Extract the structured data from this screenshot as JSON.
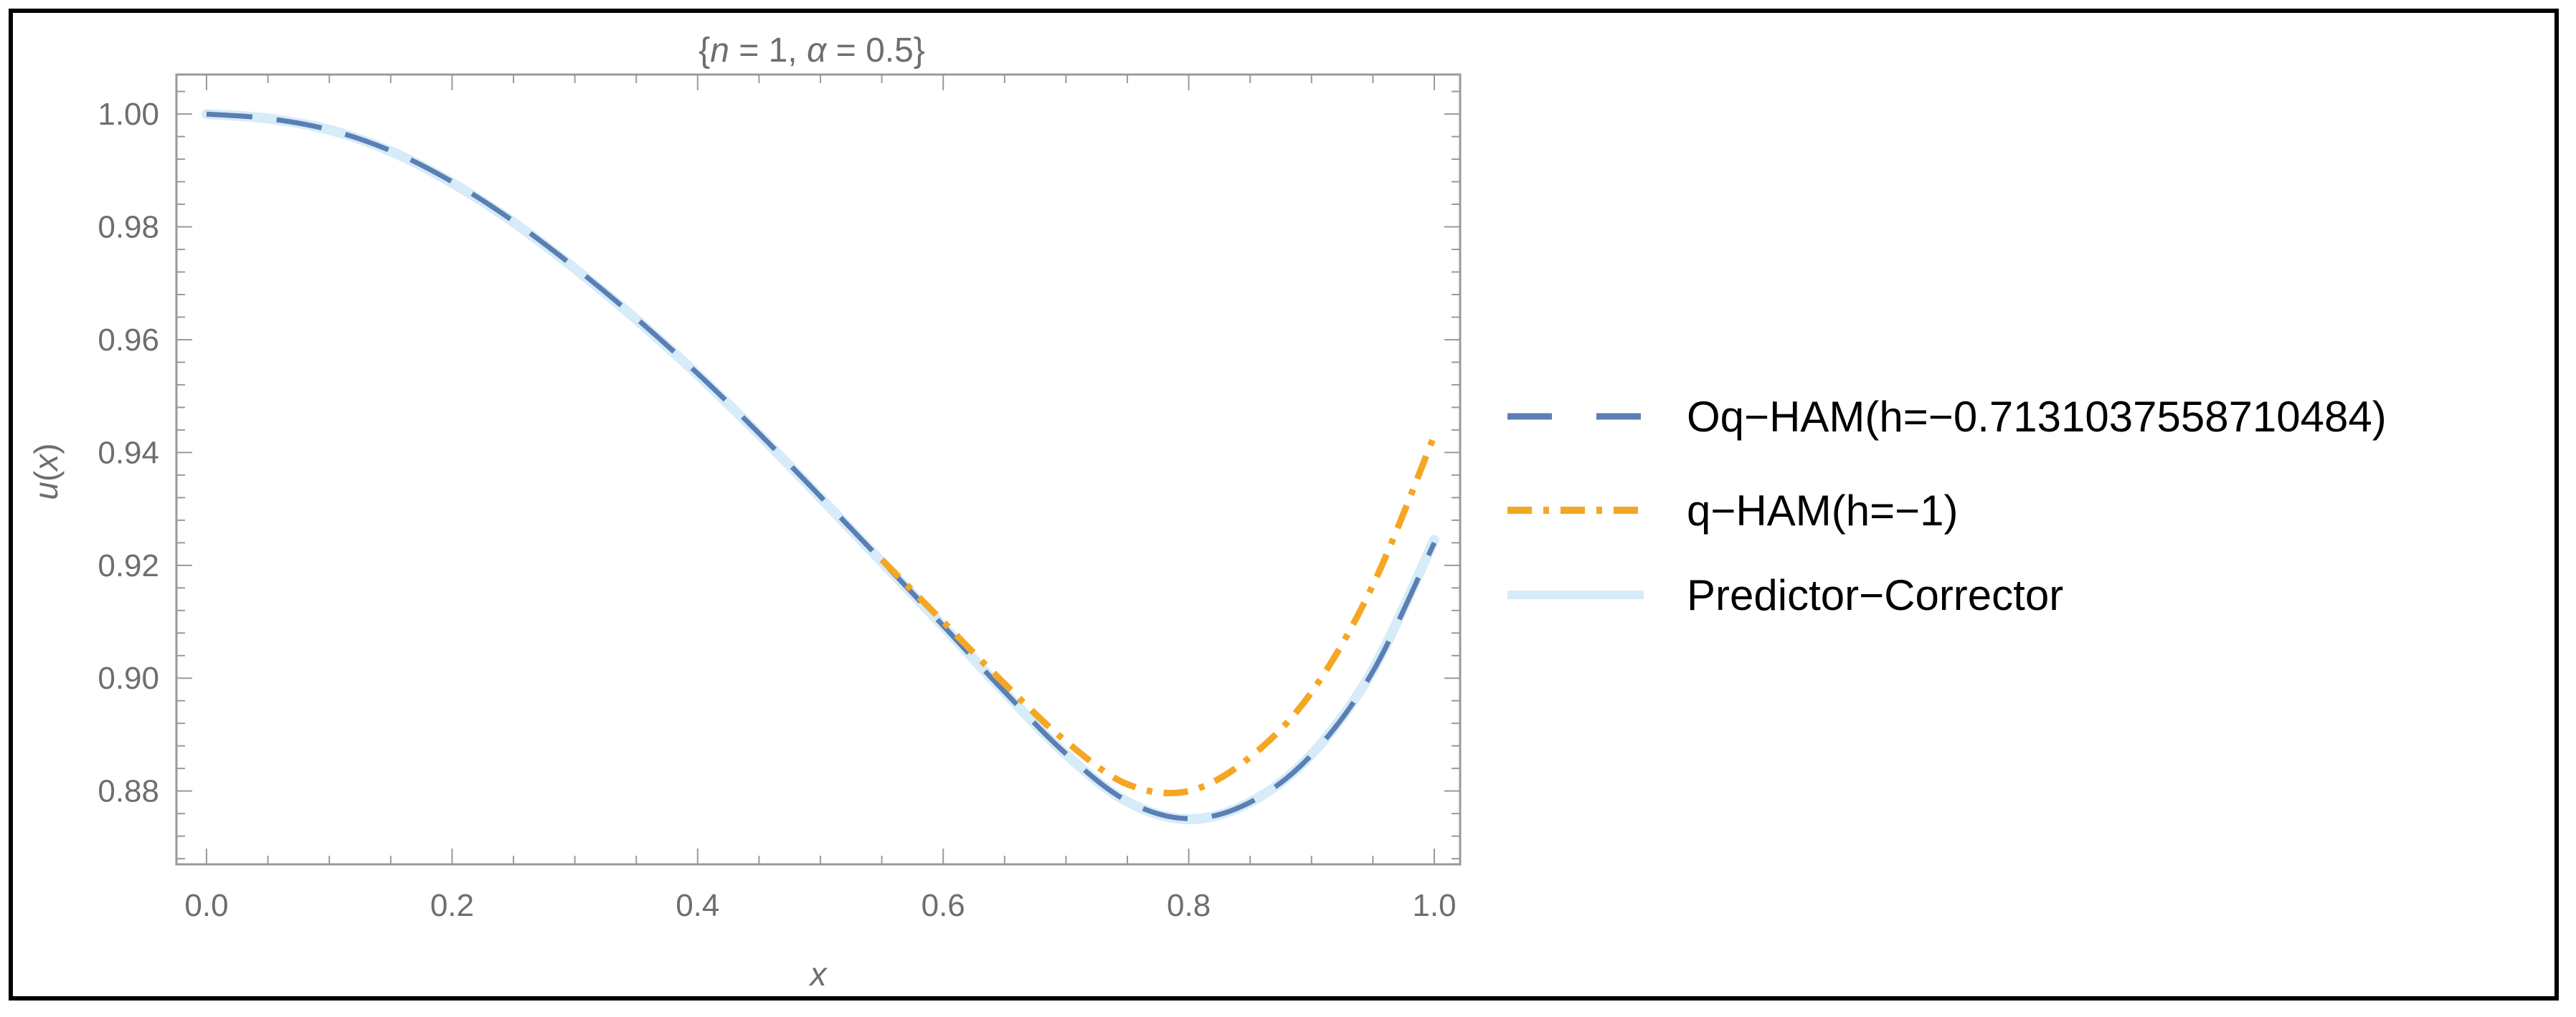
{
  "chart_data": {
    "type": "line",
    "title": "{n = 1, α = 0.5}",
    "title_parts": {
      "open": "{",
      "n": "n",
      "n_eq": " = 1, ",
      "alpha": "α",
      "alpha_eq": " = 0.5",
      "close": "}"
    },
    "xlabel": "x",
    "ylabel": "u(x)",
    "ylabel_parts": {
      "u": "u",
      "open": "(",
      "x": "x",
      "close": ")"
    },
    "xlim": [
      0.0,
      1.0
    ],
    "ylim": [
      0.867,
      1.007
    ],
    "x_ticks": [
      0.0,
      0.2,
      0.4,
      0.6,
      0.8,
      1.0
    ],
    "x_tick_labels": [
      "0.0",
      "0.2",
      "0.4",
      "0.6",
      "0.8",
      "1.0"
    ],
    "y_ticks": [
      0.88,
      0.9,
      0.92,
      0.94,
      0.96,
      0.98,
      1.0
    ],
    "y_tick_labels": [
      "0.88",
      "0.90",
      "0.92",
      "0.94",
      "0.96",
      "0.98",
      "1.00"
    ],
    "grid": false,
    "legend_position": "right",
    "series": [
      {
        "name": "Predictor−Corrector",
        "color": "#d6ecf8",
        "style": "solid",
        "x": [
          0.0,
          0.05,
          0.1,
          0.15,
          0.2,
          0.25,
          0.3,
          0.35,
          0.4,
          0.45,
          0.5,
          0.55,
          0.6,
          0.65,
          0.7,
          0.75,
          0.8,
          0.85,
          0.9,
          0.95,
          1.0
        ],
        "y": [
          1.0,
          0.9992,
          0.9972,
          0.9934,
          0.9878,
          0.9808,
          0.9726,
          0.9636,
          0.9538,
          0.9432,
          0.932,
          0.9206,
          0.9092,
          0.8975,
          0.8865,
          0.8781,
          0.875,
          0.878,
          0.8865,
          0.9015,
          0.9245
        ]
      },
      {
        "name": "Oq−HAM(h=−0.7131037558710484)",
        "color": "#5a7fb4",
        "style": "dashed",
        "x": [
          0.0,
          0.05,
          0.1,
          0.15,
          0.2,
          0.25,
          0.3,
          0.35,
          0.4,
          0.45,
          0.5,
          0.55,
          0.6,
          0.65,
          0.7,
          0.75,
          0.8,
          0.85,
          0.9,
          0.95,
          1.0
        ],
        "y": [
          1.0,
          0.9992,
          0.9972,
          0.9935,
          0.988,
          0.981,
          0.9728,
          0.9638,
          0.954,
          0.9434,
          0.9322,
          0.9208,
          0.9093,
          0.8976,
          0.8866,
          0.8782,
          0.8751,
          0.878,
          0.8864,
          0.9012,
          0.924
        ]
      },
      {
        "name": "q−HAM(h=−1)",
        "color": "#f5a623",
        "style": "dashdot",
        "x": [
          0.55,
          0.6,
          0.65,
          0.7,
          0.75,
          0.8,
          0.85,
          0.9,
          0.95,
          1.0
        ],
        "y": [
          0.921,
          0.91,
          0.899,
          0.8888,
          0.8812,
          0.88,
          0.886,
          0.8975,
          0.9165,
          0.943
        ]
      }
    ]
  }
}
